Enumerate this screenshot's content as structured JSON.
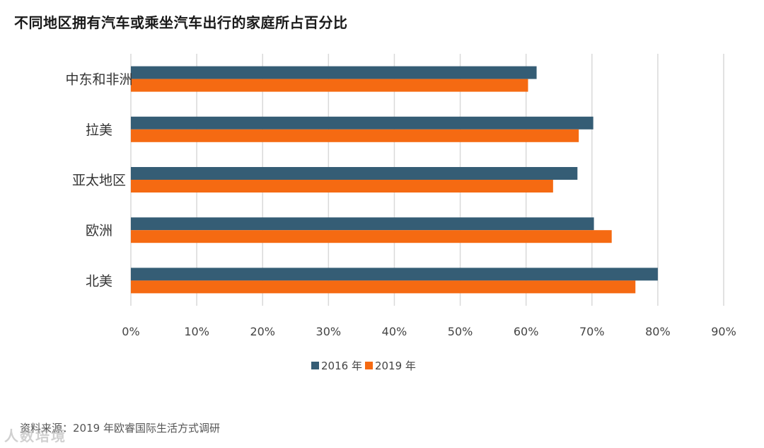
{
  "chart_data": {
    "type": "bar",
    "orientation": "horizontal",
    "title": "不同地区拥有汽车或乘坐汽车出行的家庭所占百分比",
    "categories": [
      "中东和非洲",
      "拉美",
      "亚太地区",
      "欧洲",
      "北美"
    ],
    "series": [
      {
        "name": "2016 年",
        "color": "#355D75",
        "values": [
          61.6,
          70.2,
          67.8,
          70.3,
          80.0
        ]
      },
      {
        "name": "2019 年",
        "color": "#F56A12",
        "values": [
          60.3,
          68.0,
          64.1,
          73.0,
          76.6
        ]
      }
    ],
    "xlim": [
      0,
      90
    ],
    "xticks": [
      "0%",
      "10%",
      "20%",
      "30%",
      "40%",
      "50%",
      "60%",
      "70%",
      "80%",
      "90%"
    ],
    "grid": true,
    "legend_position": "bottom"
  },
  "footer": {
    "source": "资料来源：2019 年欧睿国际生活方式调研",
    "watermark": "人数培境"
  }
}
